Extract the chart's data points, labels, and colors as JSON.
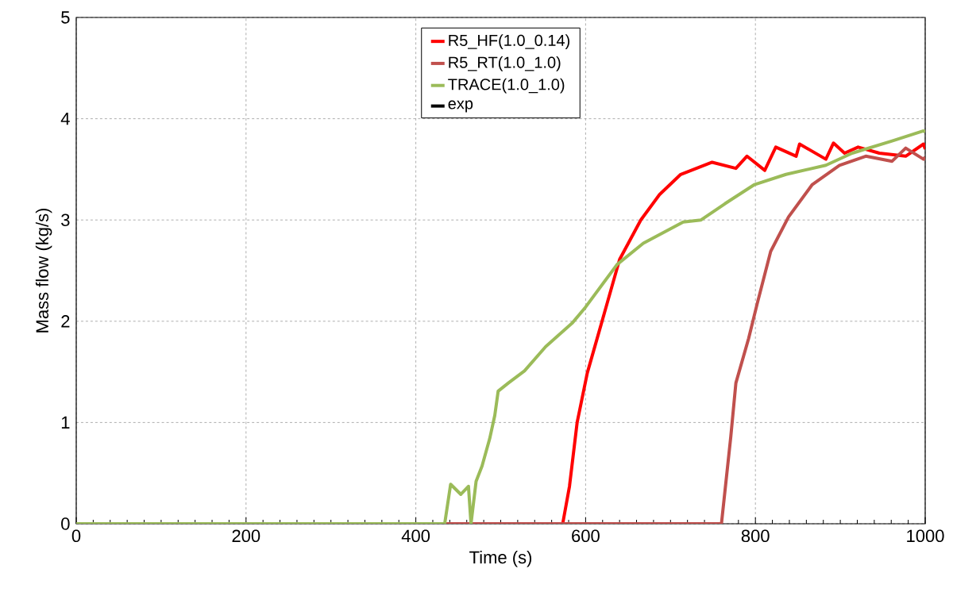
{
  "chart_data": {
    "type": "line",
    "xlabel": "Time (s)",
    "ylabel": "Mass flow (kg/s)",
    "xlim": [
      0,
      1000
    ],
    "ylim": [
      0,
      5
    ],
    "xticks": [
      0,
      200,
      400,
      600,
      800,
      1000
    ],
    "yticks": [
      0,
      1,
      2,
      3,
      4,
      5
    ],
    "grid": true,
    "legend": "top",
    "series": [
      {
        "name": "R5_HF(1.0_0.14)",
        "color": "#ff0000",
        "x": [
          0,
          573,
          581,
          590,
          602,
          618,
          640,
          665,
          687,
          712,
          749,
          777,
          790,
          811,
          824,
          848,
          852,
          883,
          892,
          905,
          921,
          946,
          977,
          998,
          1000
        ],
        "values": [
          0,
          0,
          0.37,
          1.0,
          1.49,
          1.96,
          2.61,
          3.0,
          3.25,
          3.45,
          3.57,
          3.51,
          3.63,
          3.49,
          3.72,
          3.63,
          3.75,
          3.6,
          3.76,
          3.66,
          3.72,
          3.66,
          3.63,
          3.75,
          3.7
        ]
      },
      {
        "name": "R5_RT(1.0_1.0)",
        "color": "#c0504d",
        "x": [
          0,
          760,
          771,
          777,
          792,
          802,
          818,
          839,
          867,
          899,
          930,
          961,
          977,
          998,
          1000
        ],
        "values": [
          0,
          0,
          0.86,
          1.39,
          1.83,
          2.17,
          2.69,
          3.03,
          3.35,
          3.54,
          3.63,
          3.58,
          3.71,
          3.6,
          3.62
        ]
      },
      {
        "name": "TRACE(1.0_1.0)",
        "color": "#9bbb59",
        "x": [
          0,
          434,
          441,
          453,
          462,
          465,
          471,
          478,
          487,
          493,
          497,
          509,
          528,
          553,
          584,
          600,
          637,
          668,
          715,
          736,
          764,
          799,
          836,
          883,
          914,
          961,
          998,
          1000
        ],
        "values": [
          0,
          0,
          0.39,
          0.29,
          0.37,
          0,
          0.42,
          0.57,
          0.84,
          1.07,
          1.31,
          1.39,
          1.51,
          1.75,
          1.98,
          2.14,
          2.56,
          2.77,
          2.98,
          3.0,
          3.16,
          3.35,
          3.45,
          3.54,
          3.66,
          3.78,
          3.88,
          3.87
        ]
      },
      {
        "name": "exp",
        "color": "#000000"
      }
    ]
  }
}
